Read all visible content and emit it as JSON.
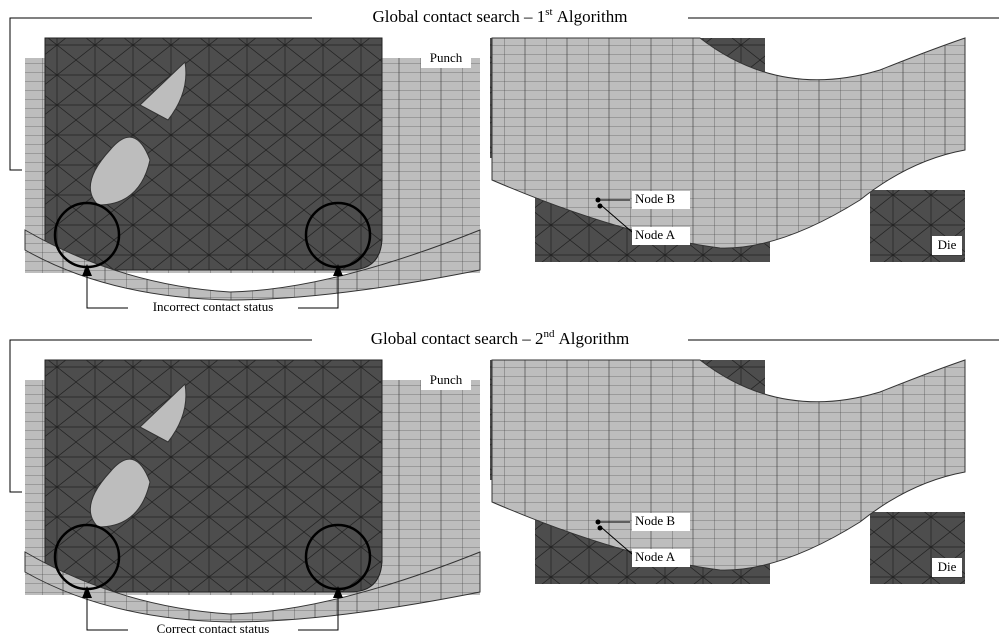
{
  "panels": [
    {
      "title": {
        "prefix": "Global contact search – 1",
        "sup": "st",
        "suffix": "Algorithm"
      },
      "punch_label": "Punch",
      "node_b": "Node B",
      "node_a": "Node A",
      "die_label": "Die",
      "caption": "Incorrect contact status"
    },
    {
      "title": {
        "prefix": "Global contact search – 2",
        "sup": "nd",
        "suffix": "Algorithm"
      },
      "punch_label": "Punch",
      "node_b": "Node B",
      "node_a": "Node A",
      "die_label": "Die",
      "caption": "Correct contact status"
    }
  ]
}
